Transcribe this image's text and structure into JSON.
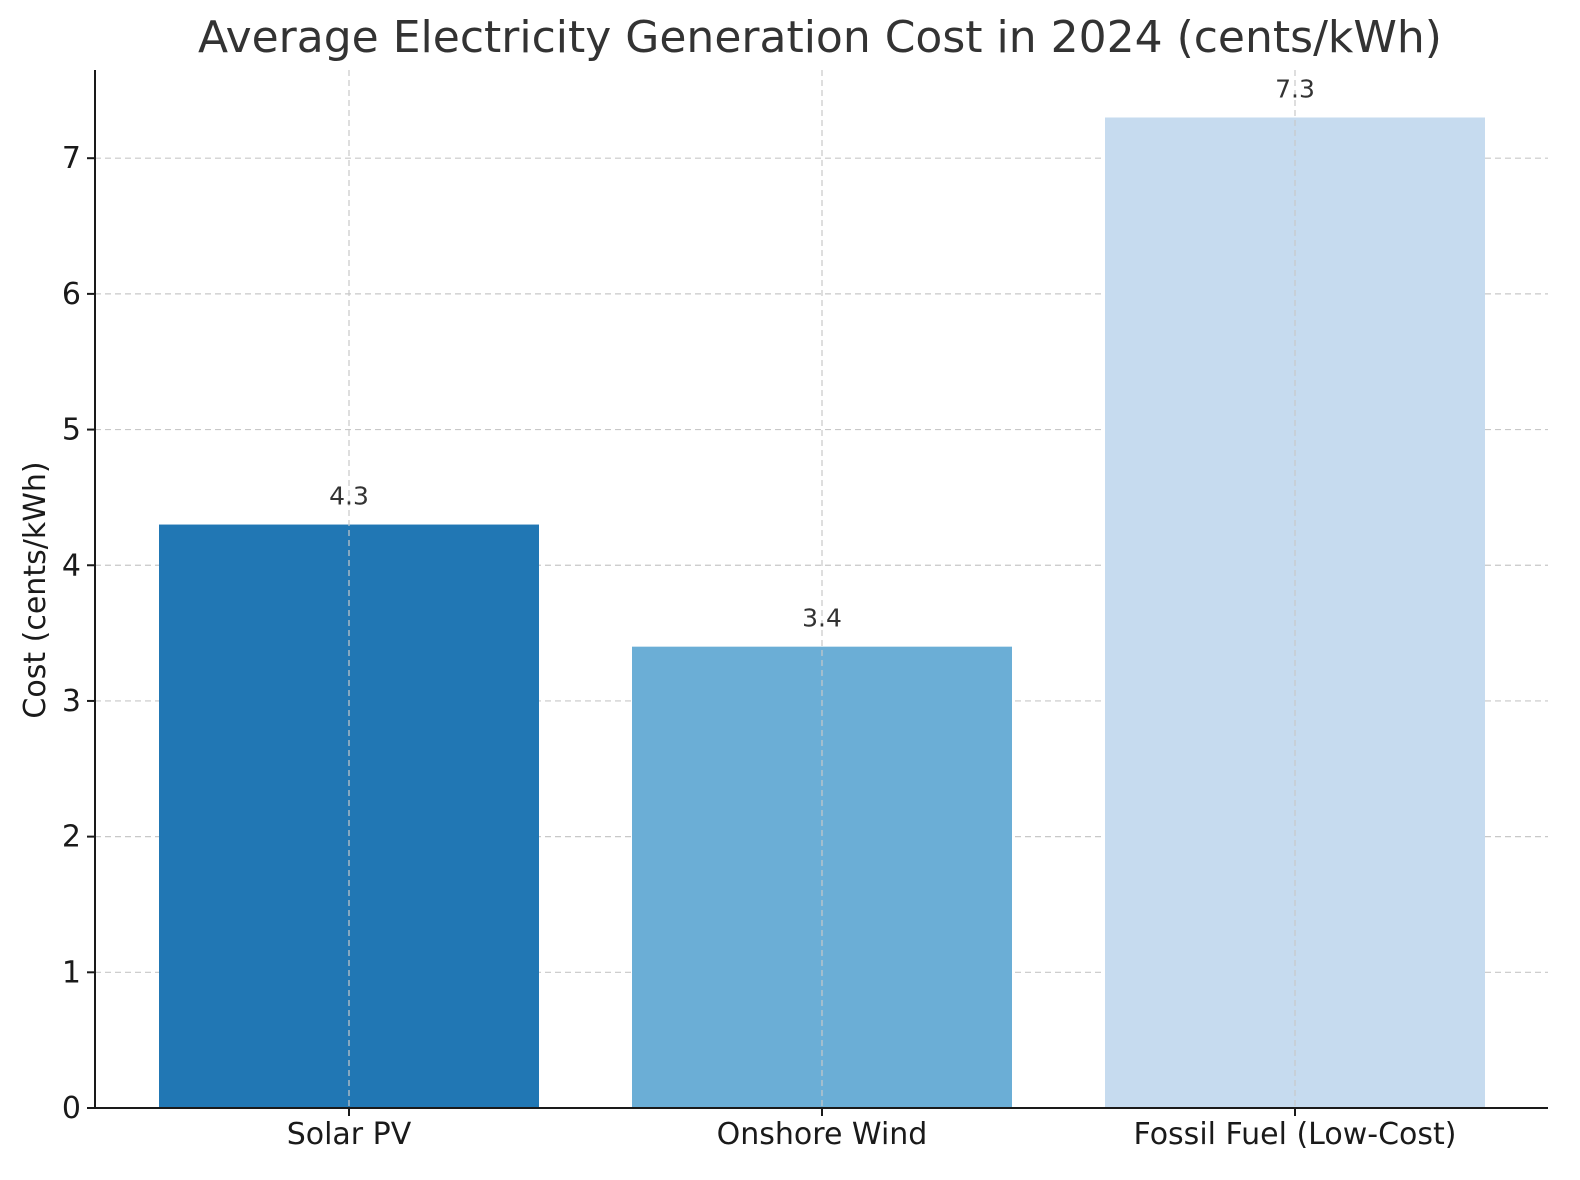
{
  "chart_data": {
    "type": "bar",
    "title": "Average Electricity Generation Cost in 2024 (cents/kWh)",
    "xlabel": "",
    "ylabel": "Cost (cents/kWh)",
    "categories": [
      "Solar PV",
      "Onshore Wind",
      "Fossil Fuel (Low-Cost)"
    ],
    "values": [
      4.3,
      3.4,
      7.3
    ],
    "data_labels": [
      "4.3",
      "3.4",
      "7.3"
    ],
    "colors": [
      "#2177b4",
      "#6baed6",
      "#c6dbef"
    ],
    "ylim": [
      0,
      7.65
    ],
    "yticks": [
      0,
      1,
      2,
      3,
      4,
      5,
      6,
      7
    ],
    "grid": true,
    "legend": "none"
  }
}
